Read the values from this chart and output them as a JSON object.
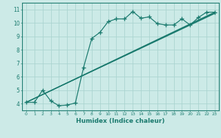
{
  "bg_color": "#cceae7",
  "grid_color": "#aad4d0",
  "line_color": "#1a7a6e",
  "line1": {
    "x": [
      0,
      1,
      2,
      3,
      4,
      5,
      6,
      7,
      8,
      9,
      10,
      11,
      12,
      13,
      14,
      15,
      16,
      17,
      18,
      19,
      20,
      21,
      22,
      23
    ],
    "y": [
      4.1,
      4.1,
      5.0,
      4.2,
      3.85,
      3.9,
      4.05,
      6.7,
      8.85,
      9.3,
      10.1,
      10.3,
      10.3,
      10.85,
      10.35,
      10.45,
      9.95,
      9.85,
      9.85,
      10.3,
      9.85,
      10.4,
      10.8,
      10.8
    ]
  },
  "line2": {
    "x": [
      0,
      23
    ],
    "y": [
      4.1,
      10.8
    ]
  },
  "line3": {
    "x": [
      0,
      23
    ],
    "y": [
      4.1,
      10.75
    ]
  },
  "line4": {
    "x": [
      0,
      23
    ],
    "y": [
      4.1,
      10.7
    ]
  },
  "xlabel": "Humidex (Indice chaleur)",
  "xlim": [
    -0.5,
    23.5
  ],
  "ylim": [
    3.5,
    11.5
  ],
  "yticks": [
    4,
    5,
    6,
    7,
    8,
    9,
    10,
    11
  ],
  "xticks": [
    0,
    1,
    2,
    3,
    4,
    5,
    6,
    7,
    8,
    9,
    10,
    11,
    12,
    13,
    14,
    15,
    16,
    17,
    18,
    19,
    20,
    21,
    22,
    23
  ]
}
